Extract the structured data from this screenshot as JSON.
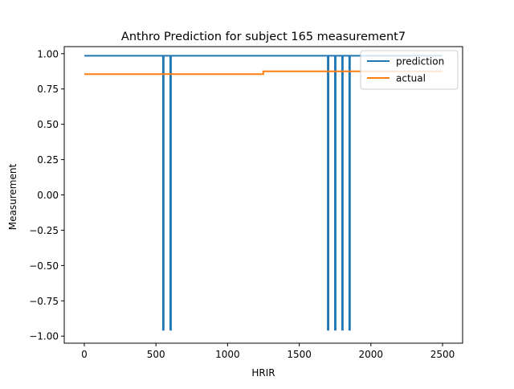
{
  "chart_data": {
    "type": "line",
    "title": "Anthro Prediction for subject 165 measurement7",
    "xlabel": "HRIR",
    "ylabel": "Measurement",
    "xlim": [
      -140,
      2640
    ],
    "ylim": [
      -1.05,
      1.05
    ],
    "xticks": [
      0,
      500,
      1000,
      1500,
      2000,
      2500
    ],
    "xtick_labels": [
      "0",
      "500",
      "1000",
      "1500",
      "2000",
      "2500"
    ],
    "yticks": [
      1.0,
      0.75,
      0.5,
      0.25,
      0.0,
      -0.25,
      -0.5,
      -0.75,
      -1.0
    ],
    "ytick_labels": [
      "1.00",
      "0.75",
      "0.50",
      "0.25",
      "0.00",
      "−0.25",
      "−0.50",
      "−0.75",
      "−1.00"
    ],
    "grid": false,
    "legend_position": "top-right",
    "series": [
      {
        "name": "prediction",
        "color": "#1f77b4",
        "x": [
          0,
          549,
          549,
          554,
          554,
          600,
          600,
          605,
          605,
          1699,
          1699,
          1704,
          1704,
          1749,
          1749,
          1754,
          1754,
          1799,
          1799,
          1804,
          1804,
          1849,
          1849,
          1854,
          1854,
          2500
        ],
        "y": [
          0.985,
          0.985,
          -0.955,
          -0.955,
          0.985,
          0.985,
          -0.955,
          -0.955,
          0.985,
          0.985,
          -0.955,
          -0.955,
          0.985,
          0.985,
          -0.955,
          -0.955,
          0.985,
          0.985,
          -0.955,
          -0.955,
          0.985,
          0.985,
          -0.955,
          -0.955,
          0.985,
          0.985
        ]
      },
      {
        "name": "actual",
        "color": "#ff7f0e",
        "x": [
          0,
          1249,
          1249,
          2500
        ],
        "y": [
          0.855,
          0.855,
          0.875,
          0.875
        ]
      }
    ]
  }
}
